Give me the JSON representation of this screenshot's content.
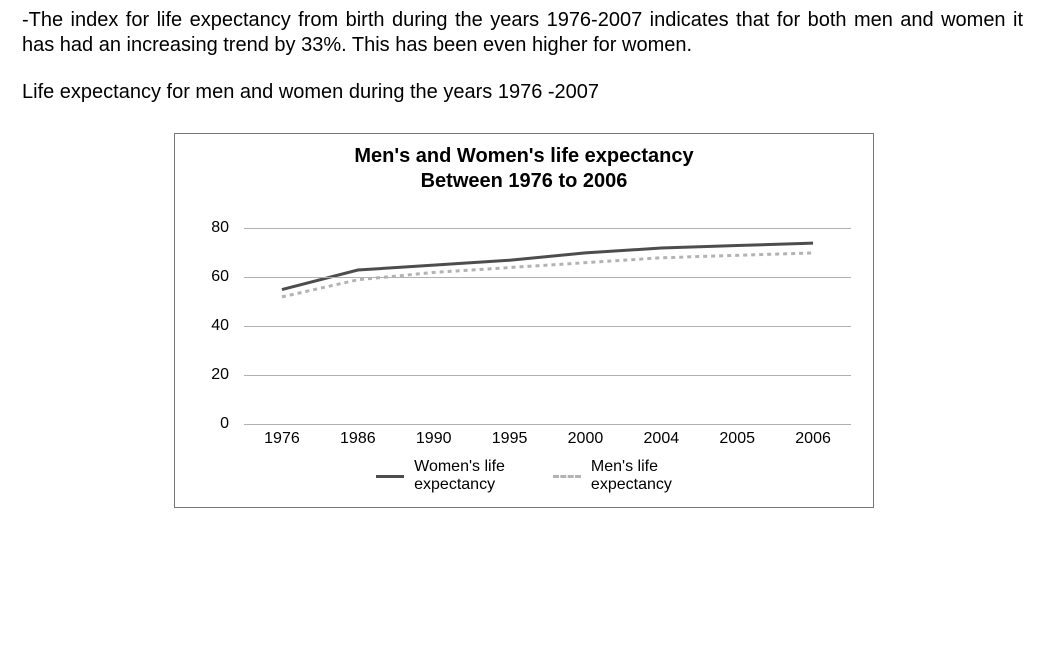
{
  "paragraph1": "-The index for life expectancy from birth during the years 1976-2007 indicates that for both men and women it has had an increasing trend by 33%.  This has been even higher for women.",
  "paragraph2": "Life expectancy for men and women during the years 1976 -2007",
  "chart": {
    "type": "line",
    "title_line1": "Men's and Women's life expectancy",
    "title_line2": "Between 1976 to 2006",
    "title_fontsize": 20,
    "label_fontsize": 16,
    "background_color": "#ffffff",
    "border_color": "#777777",
    "grid_color": "#b0b0b0",
    "categories": [
      "1976",
      "1986",
      "1990",
      "1995",
      "2000",
      "2004",
      "2005",
      "2006"
    ],
    "yticks": [
      0,
      20,
      40,
      60,
      80
    ],
    "ylim": [
      0,
      90
    ],
    "series": [
      {
        "name": "Women's life expectancy",
        "color": "#4d4d4d",
        "line_width": 3,
        "dash": "none",
        "values": [
          55,
          63,
          65,
          67,
          70,
          72,
          73,
          74
        ]
      },
      {
        "name": "Men's life expectancy",
        "color": "#b3b3b3",
        "line_width": 3,
        "dash": "4 4",
        "values": [
          52,
          59,
          62,
          64,
          66,
          68,
          69,
          70
        ]
      }
    ],
    "legend": [
      {
        "label_line1": "Women's life",
        "label_line2": "expectancy",
        "color": "#4d4d4d",
        "style": "solid"
      },
      {
        "label_line1": "Men's life",
        "label_line2": "expectancy",
        "color": "#b3b3b3",
        "style": "dash"
      }
    ]
  }
}
